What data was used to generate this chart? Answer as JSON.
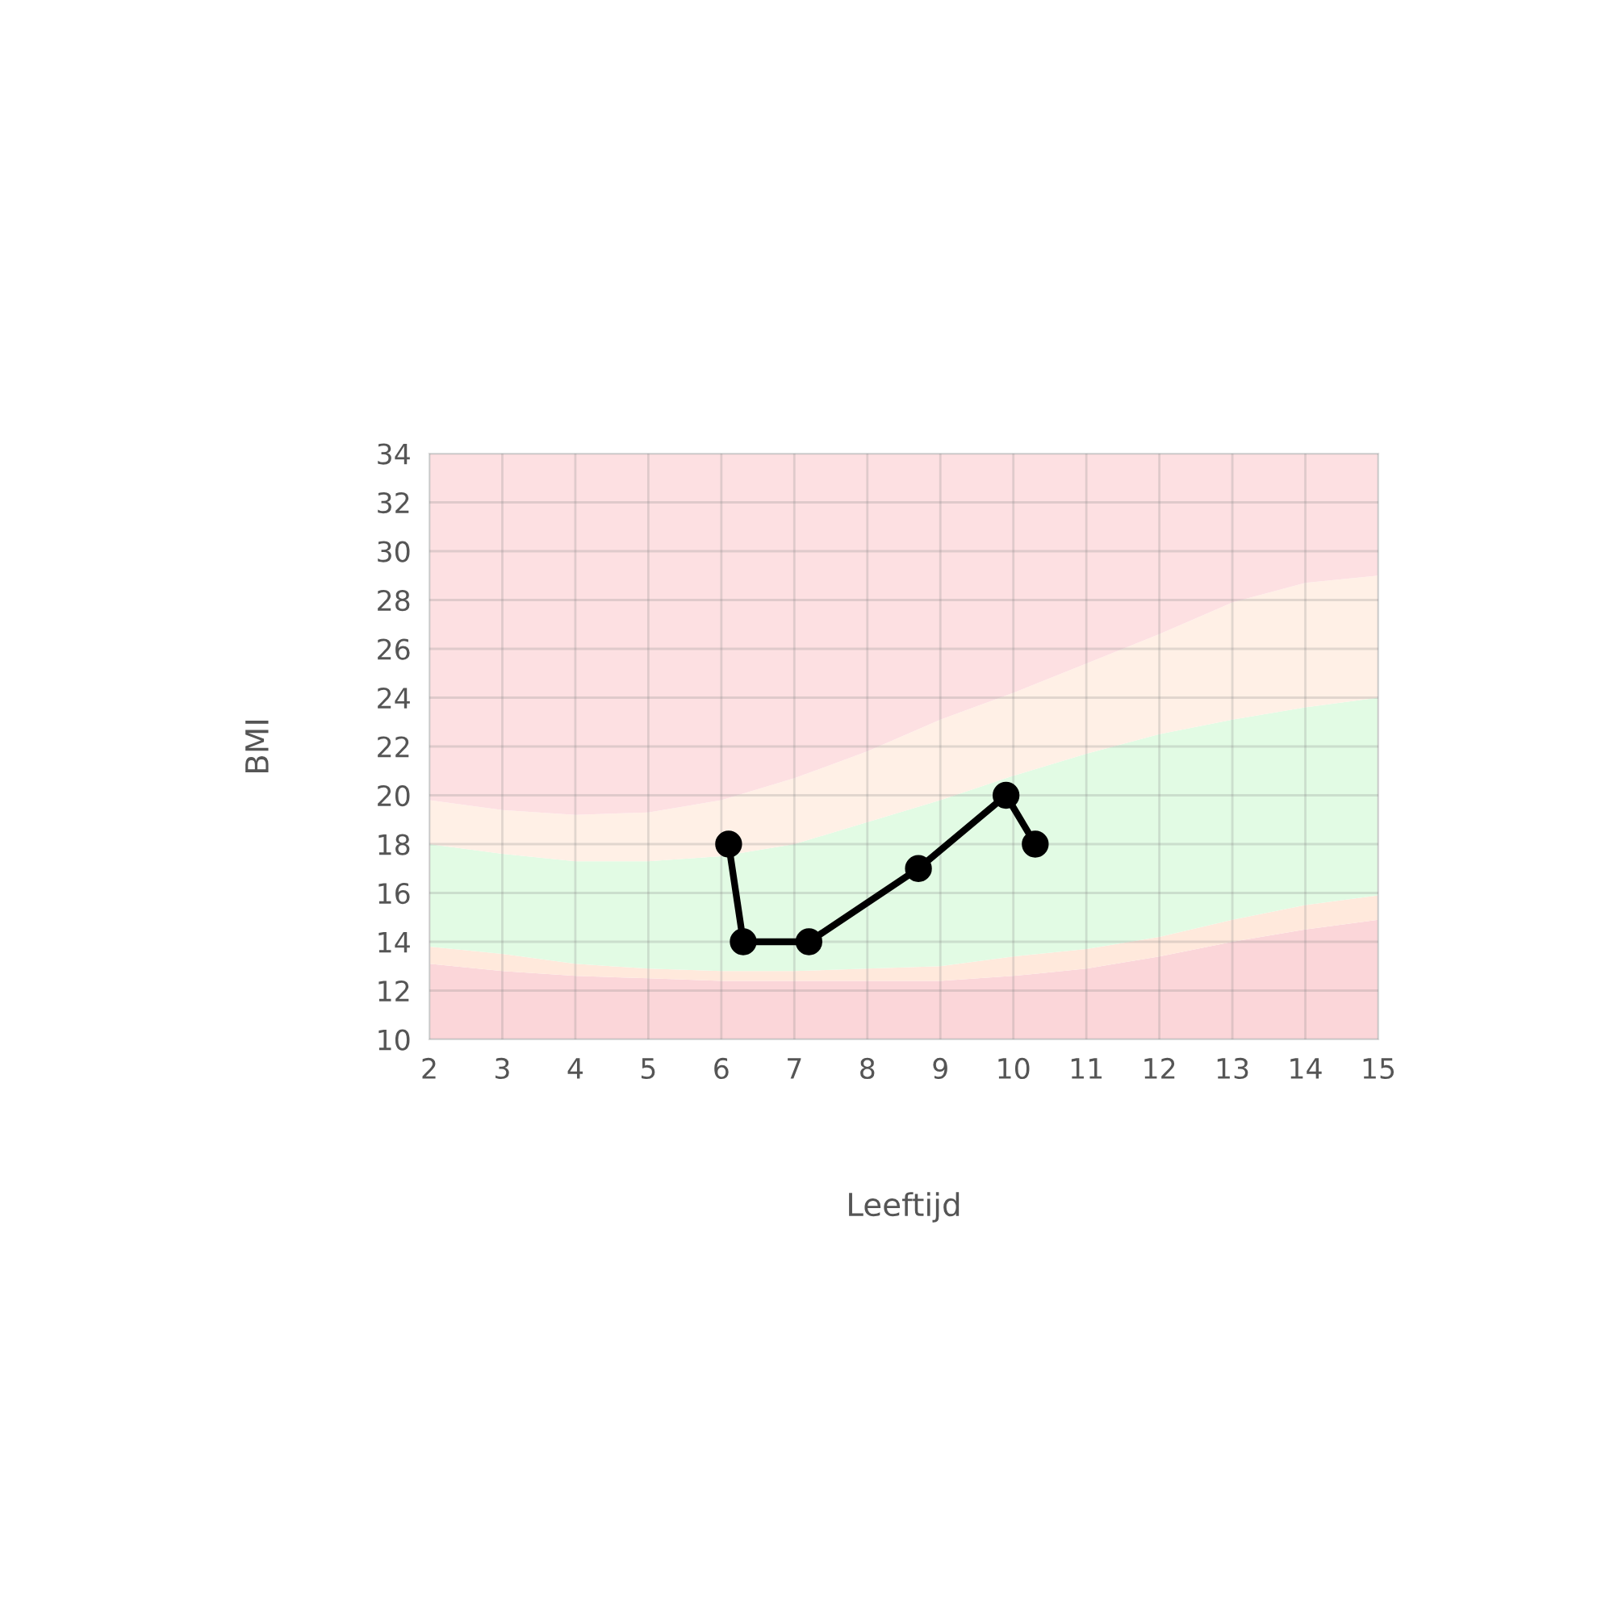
{
  "chart_data": {
    "type": "area",
    "xlabel": "Leeftijd",
    "ylabel": "BMI",
    "x": [
      2,
      3,
      4,
      5,
      6,
      7,
      8,
      9,
      10,
      11,
      12,
      13,
      14,
      15
    ],
    "xlim": [
      2,
      15
    ],
    "xticks": [
      2,
      3,
      4,
      5,
      6,
      7,
      8,
      9,
      10,
      11,
      12,
      13,
      14,
      15
    ],
    "ylim": [
      10,
      34
    ],
    "yticks": [
      10,
      12,
      14,
      16,
      18,
      20,
      22,
      24,
      26,
      28,
      30,
      32,
      34
    ],
    "grid": true,
    "series": [
      {
        "color": "#fbd6d9",
        "values": [
          13.1,
          12.8,
          12.6,
          12.5,
          12.4,
          12.4,
          12.4,
          12.4,
          12.6,
          12.9,
          13.4,
          14.0,
          14.5,
          14.9
        ]
      },
      {
        "color": "#ffe9dc",
        "values": [
          13.8,
          13.5,
          13.1,
          12.9,
          12.8,
          12.8,
          12.9,
          13.0,
          13.4,
          13.7,
          14.2,
          14.9,
          15.5,
          15.9
        ]
      },
      {
        "color": "#e2fbe4",
        "values": [
          18.0,
          17.6,
          17.3,
          17.3,
          17.5,
          18.0,
          18.9,
          19.8,
          20.8,
          21.7,
          22.5,
          23.1,
          23.6,
          24.0
        ]
      },
      {
        "color": "#fff0e6",
        "values": [
          19.8,
          19.4,
          19.2,
          19.3,
          19.8,
          20.7,
          21.8,
          23.1,
          24.2,
          25.4,
          26.6,
          27.9,
          28.7,
          29.0
        ]
      },
      {
        "color": "#fde0e2",
        "values": [
          34,
          34,
          34,
          34,
          34,
          34,
          34,
          34,
          34,
          34,
          34,
          34,
          34,
          34
        ]
      },
      {
        "type": "line",
        "color": "#000000",
        "marker": "circle",
        "line_style": "solid",
        "x": [
          6.1,
          6.3,
          7.2,
          8.7,
          9.9,
          10.3
        ],
        "values": [
          18,
          14,
          14,
          17,
          20,
          18
        ]
      }
    ]
  }
}
